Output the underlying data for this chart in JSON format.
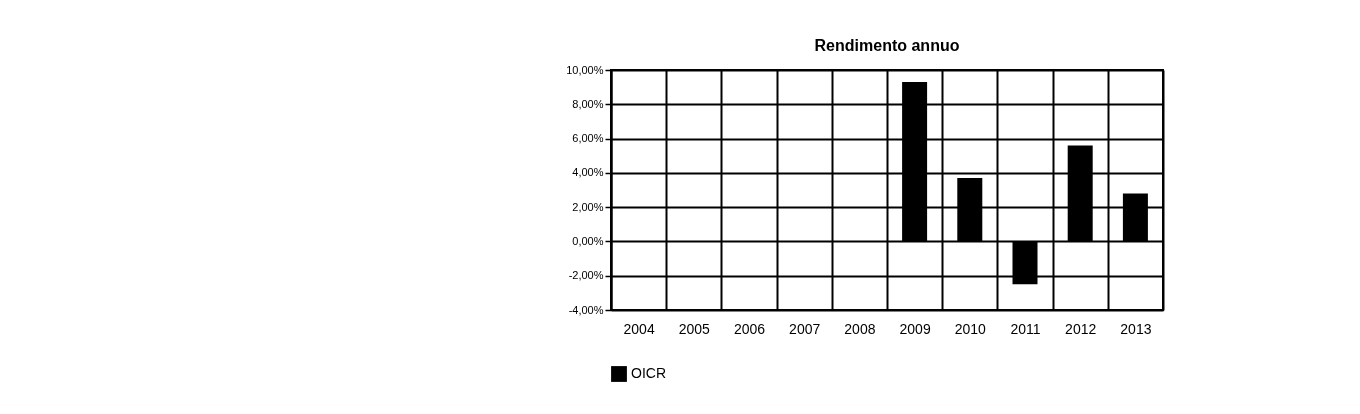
{
  "chart_data": {
    "type": "bar",
    "title": "Rendimento annuo",
    "categories": [
      "2004",
      "2005",
      "2006",
      "2007",
      "2008",
      "2009",
      "2010",
      "2011",
      "2012",
      "2013"
    ],
    "series": [
      {
        "name": "OICR",
        "color": "#000000",
        "values": [
          null,
          null,
          null,
          null,
          null,
          9.3,
          3.7,
          -2.5,
          5.6,
          2.8
        ]
      }
    ],
    "ylim": [
      -4,
      10
    ],
    "yticks": [
      {
        "value": -4,
        "label": "-4,00%"
      },
      {
        "value": -2,
        "label": "-2,00%"
      },
      {
        "value": 0,
        "label": "0,00%"
      },
      {
        "value": 2,
        "label": "2,00%"
      },
      {
        "value": 4,
        "label": "4,00%"
      },
      {
        "value": 6,
        "label": "6,00%"
      },
      {
        "value": 8,
        "label": "8,00%"
      },
      {
        "value": 10,
        "label": "10,00%"
      }
    ],
    "grid": true,
    "legend": "bottom"
  }
}
